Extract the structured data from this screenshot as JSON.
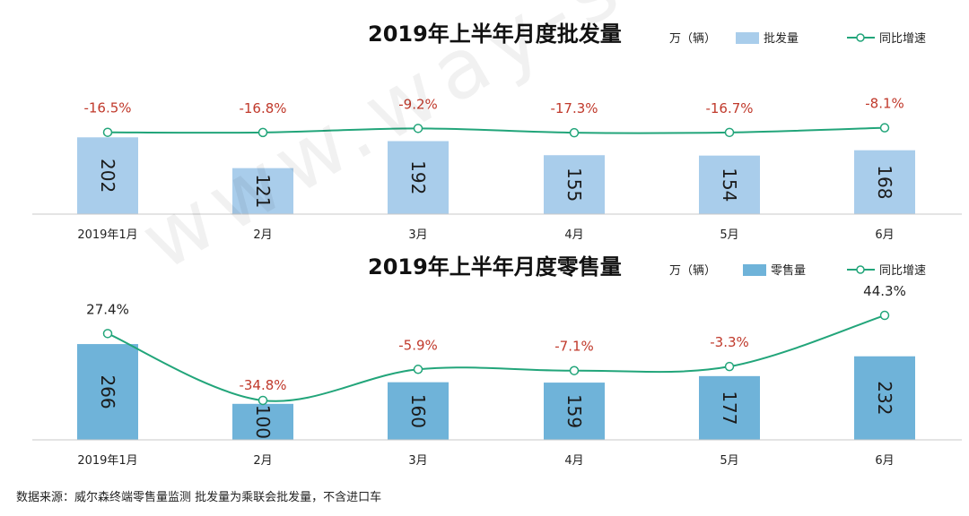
{
  "watermark": "www.way-s.cn",
  "source_note": "数据来源：威尔森终端零售量监测    批发量为乘联会批发量，不含进口车",
  "colors": {
    "wholesale_bar": "#a9cdeb",
    "retail_bar": "#6fb3d9",
    "line": "#22a57a",
    "label_red": "#c0392b",
    "label_dark": "#222222"
  },
  "chart_data": [
    {
      "type": "bar",
      "title": "2019年上半年月度批发量",
      "unit": "万（辆）",
      "categories": [
        "2019年1月",
        "2月",
        "3月",
        "4月",
        "5月",
        "6月"
      ],
      "series": [
        {
          "name": "批发量",
          "type": "bar",
          "values": [
            202,
            121,
            192,
            155,
            154,
            168
          ]
        },
        {
          "name": "同比增速",
          "type": "line",
          "values": [
            -16.5,
            -16.8,
            -9.2,
            -17.3,
            -16.7,
            -8.1
          ],
          "labels": [
            "-16.5%",
            "-16.8%",
            "-9.2%",
            "-17.3%",
            "-16.7%",
            "-8.1%"
          ]
        }
      ],
      "legend": "top-right",
      "grid": false
    },
    {
      "type": "bar",
      "title": "2019年上半年月度零售量",
      "unit": "万（辆）",
      "categories": [
        "2019年1月",
        "2月",
        "3月",
        "4月",
        "5月",
        "6月"
      ],
      "series": [
        {
          "name": "零售量",
          "type": "bar",
          "values": [
            266,
            100,
            160,
            159,
            177,
            232
          ]
        },
        {
          "name": "同比增速",
          "type": "line",
          "values": [
            27.4,
            -34.8,
            -5.9,
            -7.1,
            -3.3,
            44.3
          ],
          "labels": [
            "27.4%",
            "-34.8%",
            "-5.9%",
            "-7.1%",
            "-3.3%",
            "44.3%"
          ]
        }
      ],
      "legend": "top-right",
      "grid": false
    }
  ]
}
